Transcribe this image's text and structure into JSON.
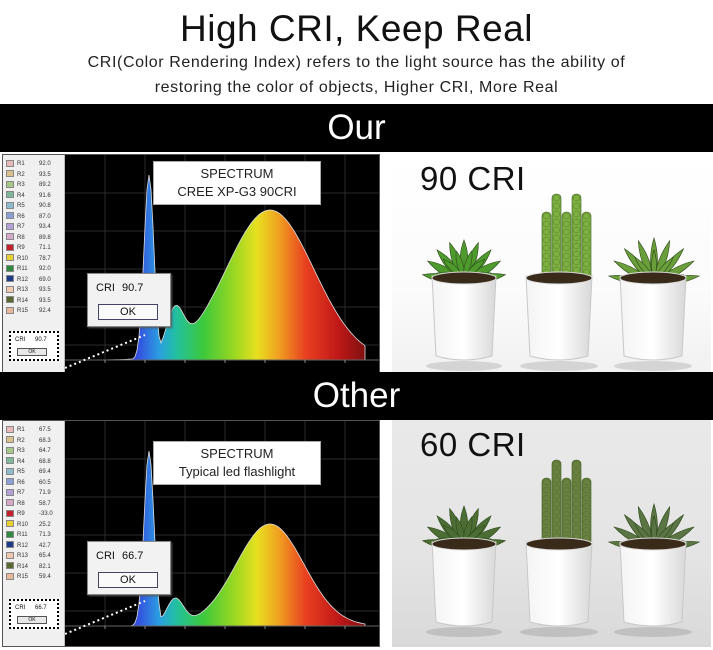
{
  "title": "High CRI, Keep Real",
  "description_line1": "CRI(Color Rendering Index) refers to the light source has the ability of",
  "description_line2": "restoring the color of objects, Higher CRI, More Real",
  "ours": {
    "band_label": "Our",
    "spectrum_title": "SPECTRUM",
    "spectrum_subtitle": "CREE XP-G3 90CRI",
    "cri_label": "CRI",
    "cri_value": "90.7",
    "ok_label": "OK",
    "photo_label": "90 CRI",
    "r_values": [
      {
        "label": "R1",
        "value": "92.0",
        "color": "#e9b9b9"
      },
      {
        "label": "R2",
        "value": "93.5",
        "color": "#d8c28a"
      },
      {
        "label": "R3",
        "value": "89.2",
        "color": "#a8c888"
      },
      {
        "label": "R4",
        "value": "91.6",
        "color": "#7fb89a"
      },
      {
        "label": "R5",
        "value": "90.8",
        "color": "#8fbccc"
      },
      {
        "label": "R6",
        "value": "87.0",
        "color": "#8aa0d6"
      },
      {
        "label": "R7",
        "value": "93.4",
        "color": "#b3a0d6"
      },
      {
        "label": "R8",
        "value": "89.8",
        "color": "#d8a8c8"
      },
      {
        "label": "R9",
        "value": "71.1",
        "color": "#c8202a"
      },
      {
        "label": "R10",
        "value": "78.7",
        "color": "#e8d030"
      },
      {
        "label": "R11",
        "value": "92.0",
        "color": "#2e8a3e"
      },
      {
        "label": "R12",
        "value": "69.0",
        "color": "#1e3a8a"
      },
      {
        "label": "R13",
        "value": "93.5",
        "color": "#f0c8b0"
      },
      {
        "label": "R14",
        "value": "93.5",
        "color": "#5a6a2e"
      },
      {
        "label": "R15",
        "value": "92.4",
        "color": "#e8b89a"
      }
    ]
  },
  "other": {
    "band_label": "Other",
    "spectrum_title": "SPECTRUM",
    "spectrum_subtitle": "Typical   led  flashlight",
    "cri_label": "CRI",
    "cri_value": "66.7",
    "ok_label": "OK",
    "photo_label": "60 CRI",
    "r_values": [
      {
        "label": "R1",
        "value": "67.5",
        "color": "#e9b9b9"
      },
      {
        "label": "R2",
        "value": "68.3",
        "color": "#d8c28a"
      },
      {
        "label": "R3",
        "value": "64.7",
        "color": "#a8c888"
      },
      {
        "label": "R4",
        "value": "68.8",
        "color": "#7fb89a"
      },
      {
        "label": "R5",
        "value": "69.4",
        "color": "#8fbccc"
      },
      {
        "label": "R6",
        "value": "60.5",
        "color": "#8aa0d6"
      },
      {
        "label": "R7",
        "value": "71.9",
        "color": "#b3a0d6"
      },
      {
        "label": "R8",
        "value": "58.7",
        "color": "#d8a8c8"
      },
      {
        "label": "R9",
        "value": "-33.0",
        "color": "#c8202a"
      },
      {
        "label": "R10",
        "value": "25.2",
        "color": "#e8d030"
      },
      {
        "label": "R11",
        "value": "71.3",
        "color": "#2e8a3e"
      },
      {
        "label": "R12",
        "value": "42.7",
        "color": "#1e3a8a"
      },
      {
        "label": "R13",
        "value": "65.4",
        "color": "#f0c8b0"
      },
      {
        "label": "R14",
        "value": "82.1",
        "color": "#5a6a2e"
      },
      {
        "label": "R15",
        "value": "59.4",
        "color": "#e8b89a"
      }
    ]
  }
}
